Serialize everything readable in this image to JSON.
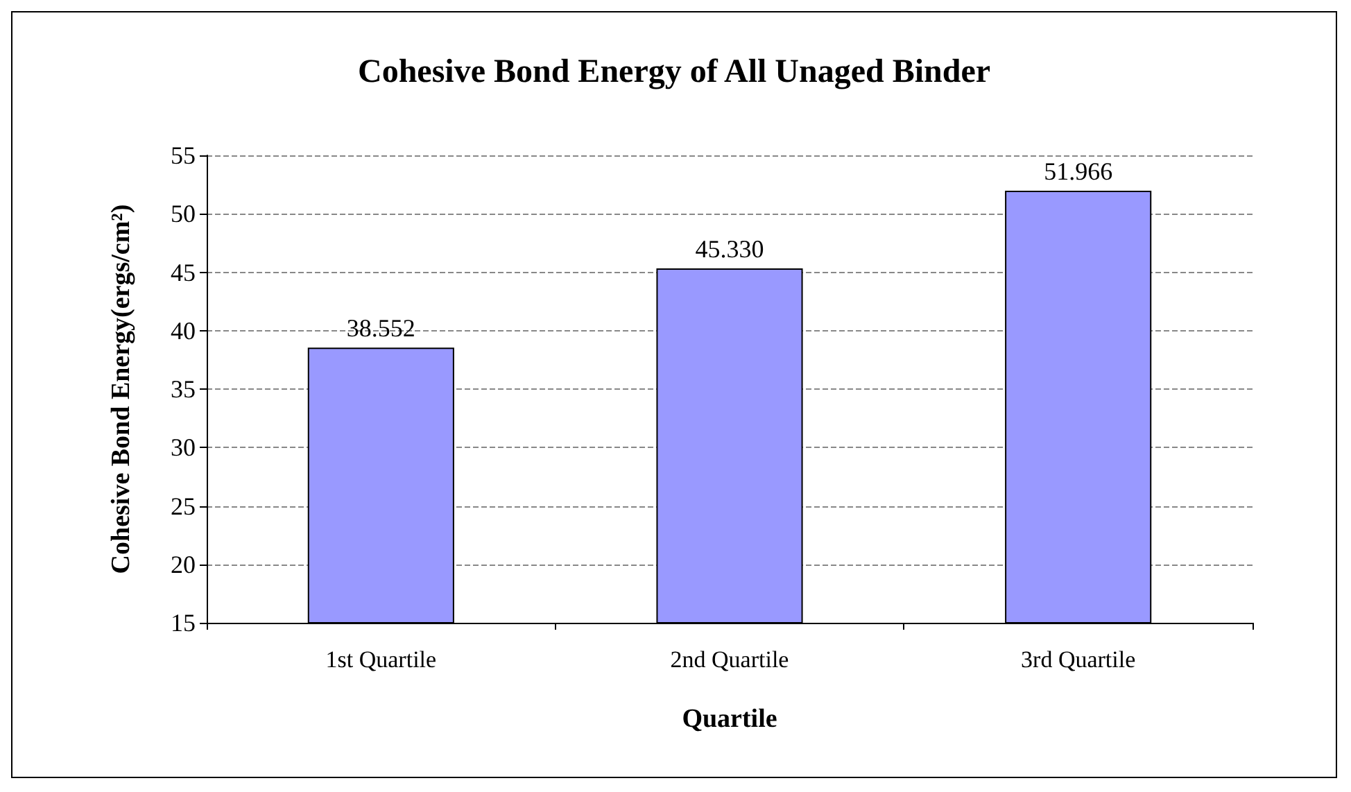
{
  "chart_data": {
    "type": "bar",
    "title": "Cohesive Bond Energy of All Unaged Binder",
    "xlabel": "Quartile",
    "ylabel": "Cohesive Bond Energy(ergs/cm²)",
    "categories": [
      "1st Quartile",
      "2nd Quartile",
      "3rd Quartile"
    ],
    "values": [
      38.552,
      45.33,
      51.966
    ],
    "value_labels": [
      "38.552",
      "45.330",
      "51.966"
    ],
    "color": "#9999ff",
    "ylim": [
      15,
      55
    ],
    "yticks": [
      15,
      20,
      25,
      30,
      35,
      40,
      45,
      50,
      55
    ],
    "grid": "y"
  }
}
